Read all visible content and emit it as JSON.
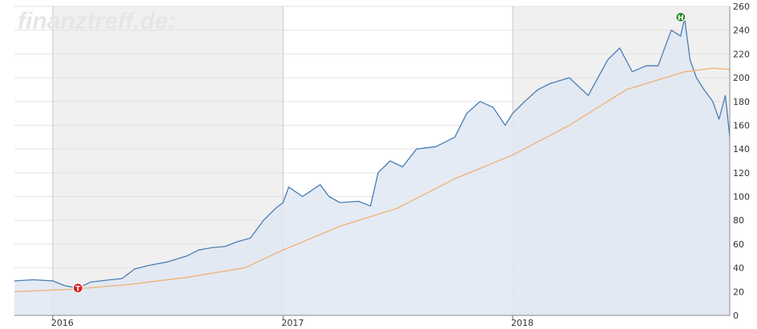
{
  "watermark": "finanztreff.de:",
  "colors": {
    "price_line": "#4a7db3",
    "price_fill": "#dfe7f3",
    "moving_average": "#f0b47a",
    "band_shade": "#f0f0f0",
    "grid": "#e2e2e2",
    "low_marker": "#d62020",
    "high_marker": "#2e8b2e"
  },
  "chart_data": {
    "type": "line",
    "title": "",
    "xlabel": "",
    "ylabel": "",
    "x_tick_labels": [
      "2016",
      "2017",
      "2018"
    ],
    "y_tick_labels": [
      "0",
      "20",
      "40",
      "60",
      "80",
      "100",
      "120",
      "140",
      "160",
      "180",
      "200",
      "220",
      "240",
      "260"
    ],
    "ylim": [
      0,
      260
    ],
    "xlim": [
      "2015-11-01",
      "2018-12-12"
    ],
    "y_axis_position": "right",
    "grid": true,
    "shaded_year_bands": [
      "2016",
      "2018"
    ],
    "series": [
      {
        "kind": "price",
        "x": [
          "2015-11-01",
          "2015-12-01",
          "2016-01-01",
          "2016-01-20",
          "2016-02-10",
          "2016-03-01",
          "2016-04-01",
          "2016-04-20",
          "2016-05-10",
          "2016-06-01",
          "2016-07-01",
          "2016-08-01",
          "2016-08-20",
          "2016-09-10",
          "2016-10-01",
          "2016-10-20",
          "2016-11-10",
          "2016-12-01",
          "2016-12-20",
          "2017-01-01",
          "2017-01-10",
          "2017-02-01",
          "2017-03-01",
          "2017-03-15",
          "2017-04-01",
          "2017-05-01",
          "2017-05-20",
          "2017-06-01",
          "2017-06-20",
          "2017-07-10",
          "2017-08-01",
          "2017-09-01",
          "2017-10-01",
          "2017-10-20",
          "2017-11-10",
          "2017-12-01",
          "2017-12-20",
          "2018-01-01",
          "2018-01-20",
          "2018-02-10",
          "2018-03-01",
          "2018-04-01",
          "2018-05-01",
          "2018-06-01",
          "2018-06-20",
          "2018-07-10",
          "2018-08-01",
          "2018-08-20",
          "2018-09-10",
          "2018-09-25",
          "2018-10-01",
          "2018-10-10",
          "2018-10-20",
          "2018-11-01",
          "2018-11-15",
          "2018-11-25",
          "2018-12-05",
          "2018-12-12"
        ],
        "y": [
          29,
          30,
          29,
          25,
          23,
          28,
          30,
          31,
          39,
          42,
          45,
          50,
          55,
          57,
          58,
          62,
          65,
          80,
          90,
          95,
          108,
          100,
          110,
          100,
          95,
          96,
          92,
          120,
          130,
          125,
          140,
          142,
          150,
          170,
          180,
          175,
          160,
          170,
          180,
          190,
          195,
          200,
          185,
          215,
          225,
          205,
          210,
          210,
          240,
          235,
          250,
          215,
          200,
          190,
          180,
          165,
          185,
          150
        ]
      },
      {
        "kind": "moving_average",
        "x": [
          "2015-11-01",
          "2016-02-01",
          "2016-05-01",
          "2016-08-01",
          "2016-11-01",
          "2017-01-01",
          "2017-04-01",
          "2017-07-01",
          "2017-10-01",
          "2018-01-01",
          "2018-04-01",
          "2018-07-01",
          "2018-10-01",
          "2018-11-15",
          "2018-12-12"
        ],
        "y": [
          20,
          22,
          26,
          32,
          40,
          55,
          75,
          90,
          115,
          135,
          160,
          190,
          205,
          208,
          207
        ]
      }
    ],
    "annotations": [
      {
        "label": "T",
        "meaning": "low",
        "x": "2016-02-10",
        "y": 23
      },
      {
        "label": "H",
        "meaning": "high",
        "x": "2018-09-25",
        "y": 251
      }
    ]
  }
}
